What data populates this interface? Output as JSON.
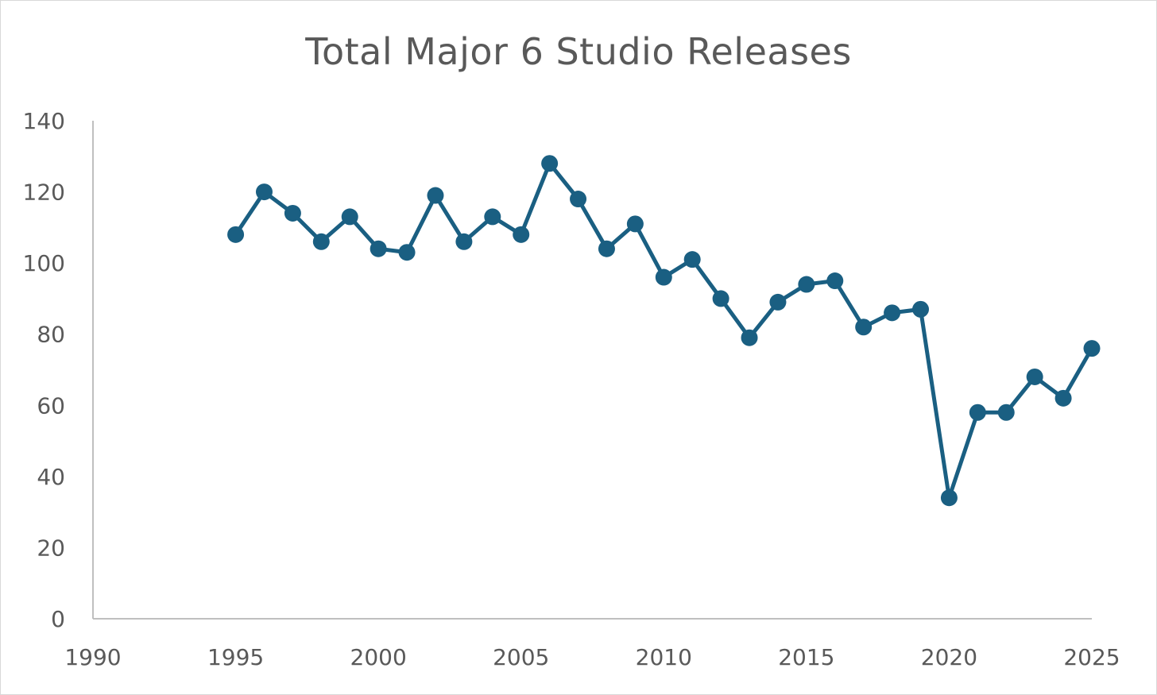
{
  "chart_data": {
    "type": "line",
    "title": "Total Major 6 Studio Releases",
    "xlabel": "",
    "ylabel": "",
    "xlim": [
      1990,
      2025
    ],
    "ylim": [
      0,
      140
    ],
    "x_ticks": [
      "1990",
      "1995",
      "2000",
      "2005",
      "2010",
      "2015",
      "2020",
      "2025"
    ],
    "y_ticks": [
      "0",
      "20",
      "40",
      "60",
      "80",
      "100",
      "120",
      "140"
    ],
    "grid": false,
    "legend": "none",
    "series": [
      {
        "color": "#1a5f82",
        "points": [
          {
            "x": 1995,
            "y": 108
          },
          {
            "x": 1996,
            "y": 120
          },
          {
            "x": 1997,
            "y": 114
          },
          {
            "x": 1998,
            "y": 106
          },
          {
            "x": 1999,
            "y": 113
          },
          {
            "x": 2000,
            "y": 104
          },
          {
            "x": 2001,
            "y": 103
          },
          {
            "x": 2002,
            "y": 119
          },
          {
            "x": 2003,
            "y": 106
          },
          {
            "x": 2004,
            "y": 113
          },
          {
            "x": 2005,
            "y": 108
          },
          {
            "x": 2006,
            "y": 128
          },
          {
            "x": 2007,
            "y": 118
          },
          {
            "x": 2008,
            "y": 104
          },
          {
            "x": 2009,
            "y": 111
          },
          {
            "x": 2010,
            "y": 96
          },
          {
            "x": 2011,
            "y": 101
          },
          {
            "x": 2012,
            "y": 90
          },
          {
            "x": 2013,
            "y": 79
          },
          {
            "x": 2014,
            "y": 89
          },
          {
            "x": 2015,
            "y": 94
          },
          {
            "x": 2016,
            "y": 95
          },
          {
            "x": 2017,
            "y": 82
          },
          {
            "x": 2018,
            "y": 86
          },
          {
            "x": 2019,
            "y": 87
          },
          {
            "x": 2020,
            "y": 34
          },
          {
            "x": 2021,
            "y": 58
          },
          {
            "x": 2022,
            "y": 58
          },
          {
            "x": 2023,
            "y": 68
          },
          {
            "x": 2024,
            "y": 62
          },
          {
            "x": 2025,
            "y": 76
          }
        ]
      }
    ],
    "axis_color": "#bfbfbf",
    "text_color": "#595959"
  }
}
